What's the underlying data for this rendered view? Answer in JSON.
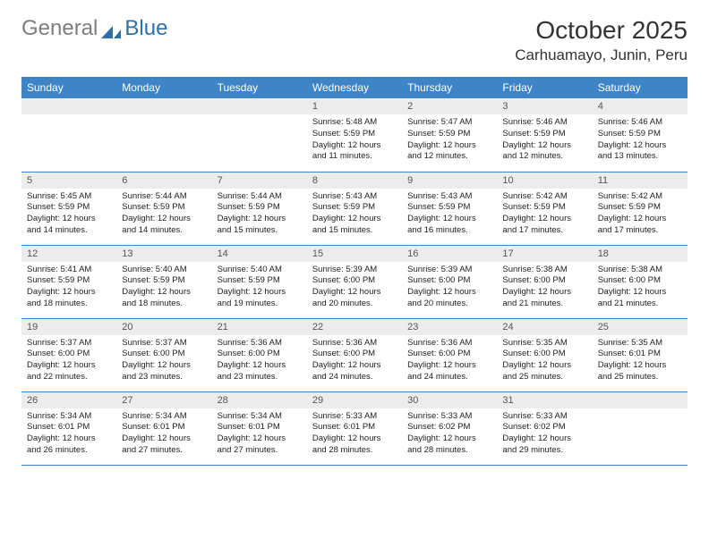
{
  "logo": {
    "text1": "General",
    "text2": "Blue"
  },
  "title": "October 2025",
  "location": "Carhuamayo, Junin, Peru",
  "colors": {
    "header_bg": "#3d85c6",
    "header_fg": "#ffffff",
    "daynum_bg": "#ececec",
    "border": "#3d85c6",
    "logo_gray": "#7d7d7d",
    "logo_blue": "#2f6fa8"
  },
  "day_headers": [
    "Sunday",
    "Monday",
    "Tuesday",
    "Wednesday",
    "Thursday",
    "Friday",
    "Saturday"
  ],
  "weeks": [
    [
      {
        "n": "",
        "empty": true
      },
      {
        "n": "",
        "empty": true
      },
      {
        "n": "",
        "empty": true
      },
      {
        "n": "1",
        "sunrise": "Sunrise: 5:48 AM",
        "sunset": "Sunset: 5:59 PM",
        "daylight": "Daylight: 12 hours and 11 minutes."
      },
      {
        "n": "2",
        "sunrise": "Sunrise: 5:47 AM",
        "sunset": "Sunset: 5:59 PM",
        "daylight": "Daylight: 12 hours and 12 minutes."
      },
      {
        "n": "3",
        "sunrise": "Sunrise: 5:46 AM",
        "sunset": "Sunset: 5:59 PM",
        "daylight": "Daylight: 12 hours and 12 minutes."
      },
      {
        "n": "4",
        "sunrise": "Sunrise: 5:46 AM",
        "sunset": "Sunset: 5:59 PM",
        "daylight": "Daylight: 12 hours and 13 minutes."
      }
    ],
    [
      {
        "n": "5",
        "sunrise": "Sunrise: 5:45 AM",
        "sunset": "Sunset: 5:59 PM",
        "daylight": "Daylight: 12 hours and 14 minutes."
      },
      {
        "n": "6",
        "sunrise": "Sunrise: 5:44 AM",
        "sunset": "Sunset: 5:59 PM",
        "daylight": "Daylight: 12 hours and 14 minutes."
      },
      {
        "n": "7",
        "sunrise": "Sunrise: 5:44 AM",
        "sunset": "Sunset: 5:59 PM",
        "daylight": "Daylight: 12 hours and 15 minutes."
      },
      {
        "n": "8",
        "sunrise": "Sunrise: 5:43 AM",
        "sunset": "Sunset: 5:59 PM",
        "daylight": "Daylight: 12 hours and 15 minutes."
      },
      {
        "n": "9",
        "sunrise": "Sunrise: 5:43 AM",
        "sunset": "Sunset: 5:59 PM",
        "daylight": "Daylight: 12 hours and 16 minutes."
      },
      {
        "n": "10",
        "sunrise": "Sunrise: 5:42 AM",
        "sunset": "Sunset: 5:59 PM",
        "daylight": "Daylight: 12 hours and 17 minutes."
      },
      {
        "n": "11",
        "sunrise": "Sunrise: 5:42 AM",
        "sunset": "Sunset: 5:59 PM",
        "daylight": "Daylight: 12 hours and 17 minutes."
      }
    ],
    [
      {
        "n": "12",
        "sunrise": "Sunrise: 5:41 AM",
        "sunset": "Sunset: 5:59 PM",
        "daylight": "Daylight: 12 hours and 18 minutes."
      },
      {
        "n": "13",
        "sunrise": "Sunrise: 5:40 AM",
        "sunset": "Sunset: 5:59 PM",
        "daylight": "Daylight: 12 hours and 18 minutes."
      },
      {
        "n": "14",
        "sunrise": "Sunrise: 5:40 AM",
        "sunset": "Sunset: 5:59 PM",
        "daylight": "Daylight: 12 hours and 19 minutes."
      },
      {
        "n": "15",
        "sunrise": "Sunrise: 5:39 AM",
        "sunset": "Sunset: 6:00 PM",
        "daylight": "Daylight: 12 hours and 20 minutes."
      },
      {
        "n": "16",
        "sunrise": "Sunrise: 5:39 AM",
        "sunset": "Sunset: 6:00 PM",
        "daylight": "Daylight: 12 hours and 20 minutes."
      },
      {
        "n": "17",
        "sunrise": "Sunrise: 5:38 AM",
        "sunset": "Sunset: 6:00 PM",
        "daylight": "Daylight: 12 hours and 21 minutes."
      },
      {
        "n": "18",
        "sunrise": "Sunrise: 5:38 AM",
        "sunset": "Sunset: 6:00 PM",
        "daylight": "Daylight: 12 hours and 21 minutes."
      }
    ],
    [
      {
        "n": "19",
        "sunrise": "Sunrise: 5:37 AM",
        "sunset": "Sunset: 6:00 PM",
        "daylight": "Daylight: 12 hours and 22 minutes."
      },
      {
        "n": "20",
        "sunrise": "Sunrise: 5:37 AM",
        "sunset": "Sunset: 6:00 PM",
        "daylight": "Daylight: 12 hours and 23 minutes."
      },
      {
        "n": "21",
        "sunrise": "Sunrise: 5:36 AM",
        "sunset": "Sunset: 6:00 PM",
        "daylight": "Daylight: 12 hours and 23 minutes."
      },
      {
        "n": "22",
        "sunrise": "Sunrise: 5:36 AM",
        "sunset": "Sunset: 6:00 PM",
        "daylight": "Daylight: 12 hours and 24 minutes."
      },
      {
        "n": "23",
        "sunrise": "Sunrise: 5:36 AM",
        "sunset": "Sunset: 6:00 PM",
        "daylight": "Daylight: 12 hours and 24 minutes."
      },
      {
        "n": "24",
        "sunrise": "Sunrise: 5:35 AM",
        "sunset": "Sunset: 6:00 PM",
        "daylight": "Daylight: 12 hours and 25 minutes."
      },
      {
        "n": "25",
        "sunrise": "Sunrise: 5:35 AM",
        "sunset": "Sunset: 6:01 PM",
        "daylight": "Daylight: 12 hours and 25 minutes."
      }
    ],
    [
      {
        "n": "26",
        "sunrise": "Sunrise: 5:34 AM",
        "sunset": "Sunset: 6:01 PM",
        "daylight": "Daylight: 12 hours and 26 minutes."
      },
      {
        "n": "27",
        "sunrise": "Sunrise: 5:34 AM",
        "sunset": "Sunset: 6:01 PM",
        "daylight": "Daylight: 12 hours and 27 minutes."
      },
      {
        "n": "28",
        "sunrise": "Sunrise: 5:34 AM",
        "sunset": "Sunset: 6:01 PM",
        "daylight": "Daylight: 12 hours and 27 minutes."
      },
      {
        "n": "29",
        "sunrise": "Sunrise: 5:33 AM",
        "sunset": "Sunset: 6:01 PM",
        "daylight": "Daylight: 12 hours and 28 minutes."
      },
      {
        "n": "30",
        "sunrise": "Sunrise: 5:33 AM",
        "sunset": "Sunset: 6:02 PM",
        "daylight": "Daylight: 12 hours and 28 minutes."
      },
      {
        "n": "31",
        "sunrise": "Sunrise: 5:33 AM",
        "sunset": "Sunset: 6:02 PM",
        "daylight": "Daylight: 12 hours and 29 minutes."
      },
      {
        "n": "",
        "empty": true
      }
    ]
  ]
}
